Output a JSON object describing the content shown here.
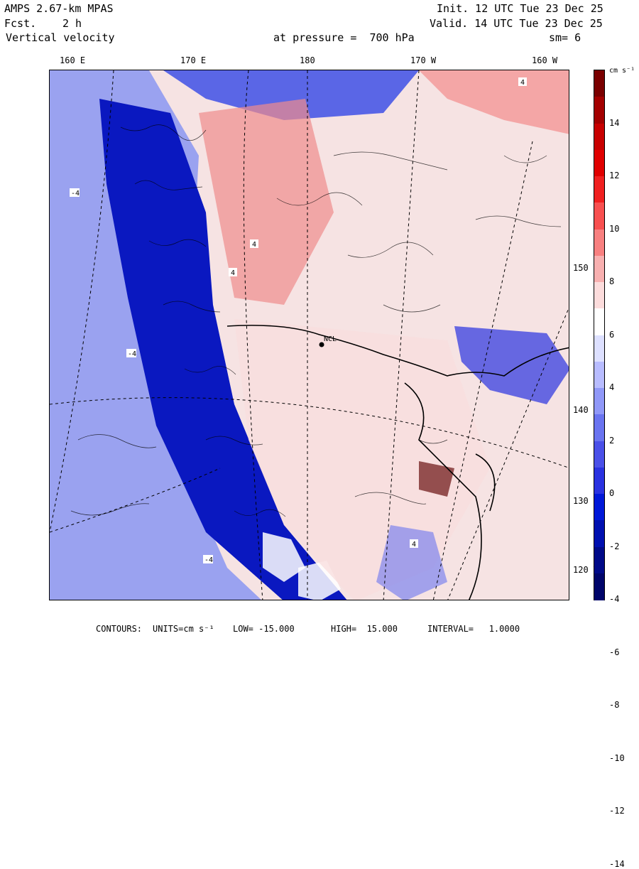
{
  "header": {
    "model": "AMPS 2.67-km MPAS",
    "init": "Init. 12 UTC Tue 23 Dec 25",
    "fcst_label": "Fcst.",
    "fcst_value": "2 h",
    "valid": "Valid. 14 UTC Tue 23 Dec 25",
    "field": "Vertical velocity",
    "pressure": "at pressure =  700 hPa",
    "smooth": "sm= 6"
  },
  "longitude_ticks": [
    "160 E",
    "170 E",
    "180",
    "170 W",
    "160 W"
  ],
  "latitude_ticks": [
    "150 W",
    "140 W",
    "130 W",
    "120 W"
  ],
  "map": {
    "station_label": "NCL",
    "contour_labels": [
      "4",
      "-4",
      "4",
      "4",
      "-4",
      "4",
      "-4"
    ]
  },
  "colorbar": {
    "units_label": "cm s⁻¹",
    "labels": [
      "14",
      "12",
      "10",
      "8",
      "6",
      "4",
      "2",
      "0",
      "-2",
      "-4",
      "-6",
      "-8",
      "-10",
      "-12",
      "-14"
    ],
    "colors": [
      "#7a0000",
      "#a30000",
      "#c80000",
      "#e00000",
      "#f02020",
      "#f85050",
      "#f88080",
      "#f8b0b0",
      "#fcdcdc",
      "#ffffff",
      "#dde0ff",
      "#b8bcff",
      "#9098f8",
      "#6a74f0",
      "#4a50e8",
      "#2a32e0",
      "#0018d8",
      "#0010b0",
      "#000a88",
      "#00056a"
    ]
  },
  "footer": {
    "contours": "CONTOURS:",
    "units": "UNITS=cm s⁻¹",
    "low": "LOW= -15.000",
    "high": "HIGH=  15.000",
    "interval": "INTERVAL=   1.0000"
  }
}
